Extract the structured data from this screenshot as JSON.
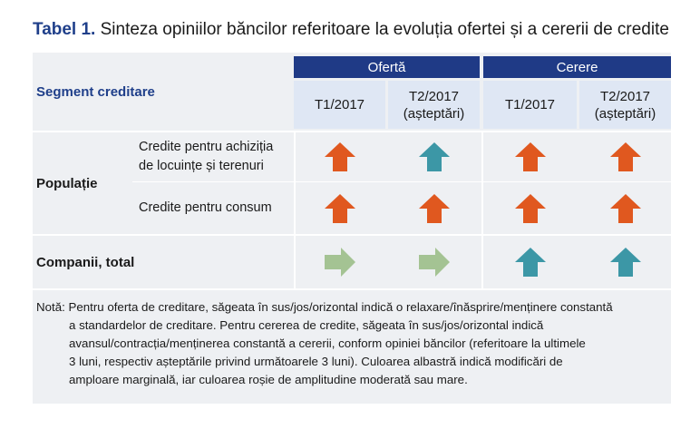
{
  "title": {
    "label": "Tabel 1.",
    "text": "Sinteza opiniilor băncilor referitoare la evoluția ofertei și a cererii de credite"
  },
  "table": {
    "corner_label": "Segment creditare",
    "groups": [
      {
        "label": "Ofertă",
        "periods": [
          "T1/2017",
          "T2/2017",
          "(așteptări)"
        ]
      },
      {
        "label": "Cerere",
        "periods": [
          "T1/2017",
          "T2/2017",
          "(așteptări)"
        ]
      }
    ],
    "rows": {
      "populatie": {
        "label": "Populație",
        "housing_line1": "Credite pentru achiziția",
        "housing_line2": "de locuințe și terenuri",
        "consumer": "Credite pentru consum"
      },
      "companii": {
        "label": "Companii, total"
      }
    },
    "cells": {
      "housing": [
        {
          "direction": "up",
          "color": "#e0581f"
        },
        {
          "direction": "up",
          "color": "#3c97a6"
        },
        {
          "direction": "up",
          "color": "#e0581f"
        },
        {
          "direction": "up",
          "color": "#e0581f"
        }
      ],
      "consumer": [
        {
          "direction": "up",
          "color": "#e0581f"
        },
        {
          "direction": "up",
          "color": "#e0581f"
        },
        {
          "direction": "up",
          "color": "#e0581f"
        },
        {
          "direction": "up",
          "color": "#e0581f"
        }
      ],
      "companii": [
        {
          "direction": "right",
          "color": "#a4c393"
        },
        {
          "direction": "right",
          "color": "#a4c393"
        },
        {
          "direction": "up",
          "color": "#3c97a6"
        },
        {
          "direction": "up",
          "color": "#3c97a6"
        }
      ]
    }
  },
  "note": {
    "line1": "Notă: Pentru oferta de creditare, săgeata în sus/jos/orizontal indică o relaxare/înăsprire/menținere constantă",
    "line2": "a standardelor de creditare. Pentru cererea de credite, săgeata în sus/jos/orizontal indică",
    "line3": "avansul/contracția/menținerea constantă a cererii, conform opiniei băncilor (referitoare la ultimele",
    "line4": "3 luni, respectiv așteptările privind următoarele 3 luni). Culoarea albastră indică modificări de",
    "line5": "amploare marginală, iar culoarea roșie de amplitudine moderată sau mare."
  },
  "colors": {
    "header_blue": "#1f3a86",
    "subheader_bg": "#dfe7f4",
    "table_bg": "#eef0f3",
    "arrow_orange": "#e0581f",
    "arrow_teal": "#3c97a6",
    "arrow_green": "#a4c393"
  }
}
